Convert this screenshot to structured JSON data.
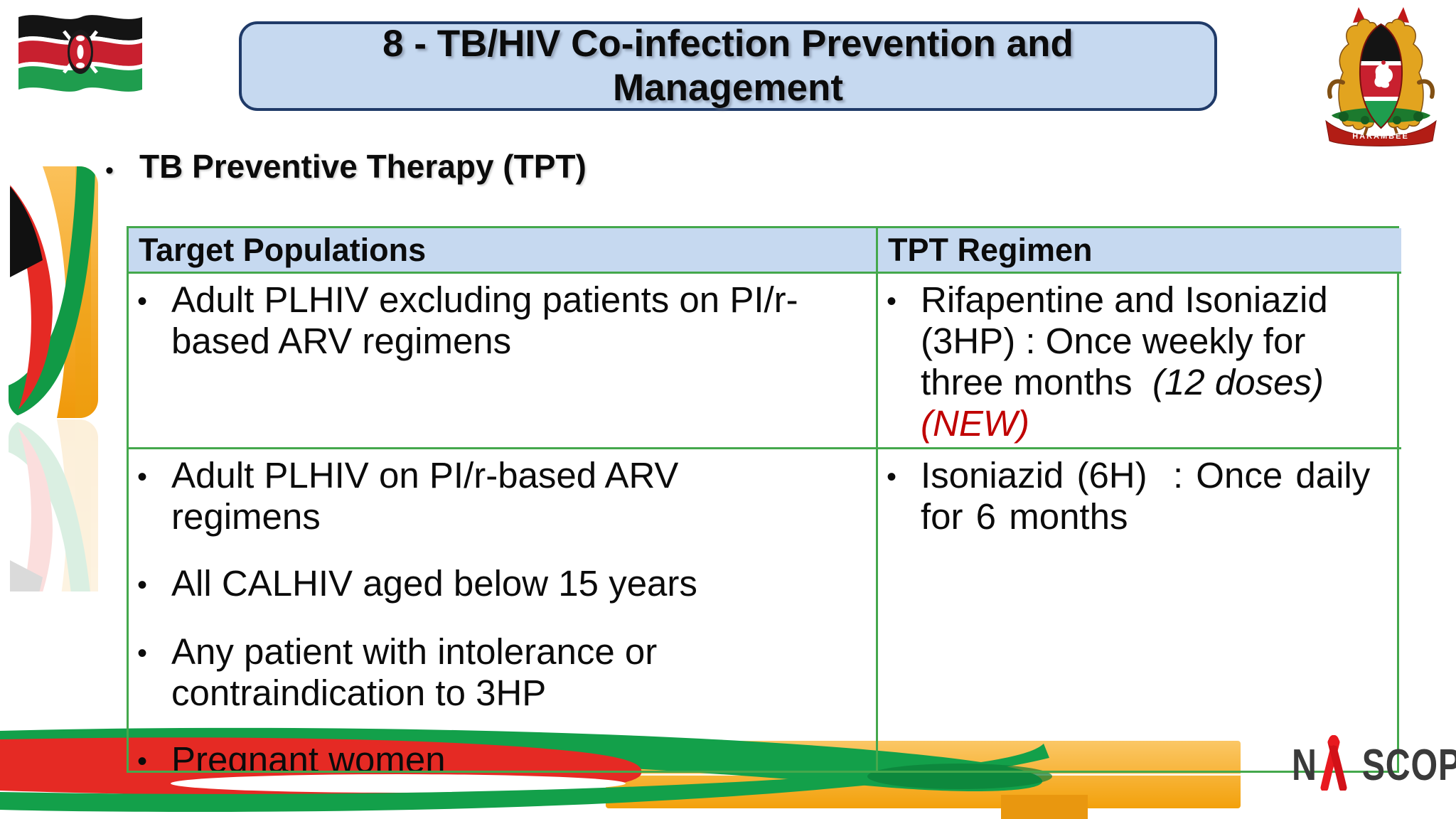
{
  "bullet_char": "•",
  "colors": {
    "title_fill": "#c6d9f0",
    "title_border": "#1f3a68",
    "table_border": "#44a84c",
    "header_fill": "#c6d9f0",
    "new_label_red": "#c00000",
    "ribbon_red": "#e52a24",
    "ribbon_green": "#13a04a",
    "ribbon_orange": "#f3a10b",
    "ribbon_black": "#151515"
  },
  "header": {
    "title_line1": "8 - TB/HIV Co-infection Prevention and",
    "title_line2": "Management"
  },
  "heading": "TB Preventive Therapy (TPT)",
  "icons": {
    "flag": "kenya-flag",
    "coat_of_arms": "kenya-coat-of-arms",
    "motto": "HARAMBEE",
    "aids_ribbon": "red-awareness-ribbon",
    "nascop_n": "N",
    "nascop_scop": "SCOP"
  },
  "table": {
    "columns": [
      "Target Populations",
      "TPT Regimen"
    ],
    "rows": [
      {
        "left_items": [
          {
            "text": "Adult PLHIV excluding patients on PI/r-based ARV regimens"
          }
        ],
        "right_items": [
          {
            "segments": [
              {
                "text": "Rifapentine and Isoniazid (3HP) : Once weekly for three months "
              },
              {
                "text": " (12 doses) ",
                "style": "italic"
              },
              {
                "text": "(NEW)",
                "style": "italic-red"
              }
            ]
          }
        ]
      },
      {
        "left_items": [
          {
            "text": "Adult PLHIV on PI/r-based ARV regimens"
          },
          {
            "text": "All CALHIV aged below 15 years"
          },
          {
            "text": "Any patient with intolerance or contraindication to 3HP"
          },
          {
            "text": "Pregnant women"
          }
        ],
        "right_items": [
          {
            "text": "Isoniazid (6H)  : Once daily for 6 months",
            "justify": true
          }
        ]
      }
    ]
  }
}
